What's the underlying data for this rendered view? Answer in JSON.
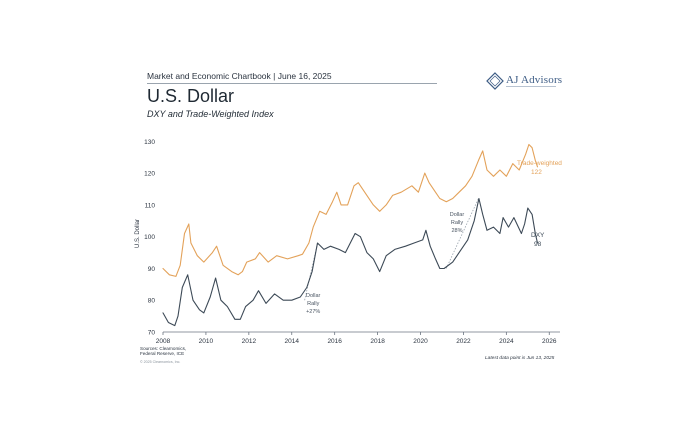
{
  "header": {
    "chartbook": "Market and Economic Chartbook | June 16, 2025",
    "logo_text": "AJ Advisors"
  },
  "title": "U.S. Dollar",
  "subtitle": "DXY and Trade-Weighted Index",
  "footer": {
    "sources_line1": "Sources: Clearnomics,",
    "sources_line2": "Federal Reserve, ICE",
    "copyright": "© 2025 Clearnomics, Inc.",
    "latest": "Latest data point is Jun 13, 2025"
  },
  "colors": {
    "trade_weighted": "#e3a25a",
    "dxy": "#3d4a57",
    "annotation": "#9aa4ae",
    "axis": "#6b7480",
    "brand": "#3c5b84"
  },
  "chart_data": {
    "type": "line",
    "xlim": [
      2008,
      2026.5
    ],
    "ylim": [
      70,
      132
    ],
    "ylabel": "U.S. Dollar",
    "x_ticks": [
      "2008",
      "2010",
      "2012",
      "2014",
      "2016",
      "2018",
      "2020",
      "2022",
      "2024",
      "2026"
    ],
    "y_ticks": [
      "70",
      "80",
      "90",
      "100",
      "110",
      "120",
      "130"
    ],
    "series": [
      {
        "name": "Trade-weighted",
        "end_label": "Trade-weighted",
        "end_value": "122",
        "points": [
          [
            2008.0,
            90.0
          ],
          [
            2008.3,
            88.0
          ],
          [
            2008.6,
            87.5
          ],
          [
            2008.8,
            91.0
          ],
          [
            2009.0,
            101.0
          ],
          [
            2009.2,
            104.0
          ],
          [
            2009.3,
            98.0
          ],
          [
            2009.6,
            94.0
          ],
          [
            2009.9,
            92.0
          ],
          [
            2010.3,
            95.0
          ],
          [
            2010.5,
            97.0
          ],
          [
            2010.8,
            91.0
          ],
          [
            2011.2,
            89.0
          ],
          [
            2011.5,
            88.0
          ],
          [
            2011.7,
            89.0
          ],
          [
            2011.9,
            92.0
          ],
          [
            2012.3,
            93.0
          ],
          [
            2012.5,
            95.0
          ],
          [
            2012.9,
            92.0
          ],
          [
            2013.3,
            94.0
          ],
          [
            2013.8,
            93.0
          ],
          [
            2014.3,
            94.0
          ],
          [
            2014.5,
            94.5
          ],
          [
            2014.8,
            98.0
          ],
          [
            2015.0,
            103.0
          ],
          [
            2015.3,
            108.0
          ],
          [
            2015.6,
            107.0
          ],
          [
            2015.9,
            111.0
          ],
          [
            2016.1,
            114.0
          ],
          [
            2016.3,
            110.0
          ],
          [
            2016.6,
            110.0
          ],
          [
            2016.9,
            116.0
          ],
          [
            2017.1,
            117.0
          ],
          [
            2017.4,
            114.0
          ],
          [
            2017.8,
            110.0
          ],
          [
            2018.1,
            108.0
          ],
          [
            2018.4,
            110.0
          ],
          [
            2018.7,
            113.0
          ],
          [
            2019.1,
            114.0
          ],
          [
            2019.6,
            116.0
          ],
          [
            2019.9,
            114.0
          ],
          [
            2020.2,
            120.0
          ],
          [
            2020.4,
            117.0
          ],
          [
            2020.7,
            114.0
          ],
          [
            2020.9,
            112.0
          ],
          [
            2021.2,
            111.0
          ],
          [
            2021.5,
            112.0
          ],
          [
            2021.8,
            114.0
          ],
          [
            2022.1,
            116.0
          ],
          [
            2022.4,
            119.0
          ],
          [
            2022.7,
            124.0
          ],
          [
            2022.9,
            127.0
          ],
          [
            2023.1,
            121.0
          ],
          [
            2023.4,
            119.0
          ],
          [
            2023.7,
            121.0
          ],
          [
            2024.0,
            119.0
          ],
          [
            2024.3,
            123.0
          ],
          [
            2024.6,
            121.0
          ],
          [
            2024.9,
            126.0
          ],
          [
            2025.05,
            129.0
          ],
          [
            2025.2,
            128.0
          ],
          [
            2025.35,
            124.0
          ],
          [
            2025.45,
            122.0
          ]
        ]
      },
      {
        "name": "DXY",
        "end_label": "DXY",
        "end_value": "98",
        "points": [
          [
            2008.0,
            76.0
          ],
          [
            2008.25,
            73.0
          ],
          [
            2008.55,
            72.0
          ],
          [
            2008.7,
            75.0
          ],
          [
            2008.9,
            84.0
          ],
          [
            2009.15,
            88.0
          ],
          [
            2009.4,
            80.0
          ],
          [
            2009.7,
            77.0
          ],
          [
            2009.9,
            76.0
          ],
          [
            2010.2,
            81.0
          ],
          [
            2010.45,
            87.0
          ],
          [
            2010.7,
            80.0
          ],
          [
            2011.0,
            78.0
          ],
          [
            2011.35,
            74.0
          ],
          [
            2011.6,
            74.0
          ],
          [
            2011.85,
            78.0
          ],
          [
            2012.2,
            80.0
          ],
          [
            2012.45,
            83.0
          ],
          [
            2012.8,
            79.0
          ],
          [
            2013.2,
            82.0
          ],
          [
            2013.6,
            80.0
          ],
          [
            2014.0,
            80.0
          ],
          [
            2014.4,
            81.0
          ],
          [
            2014.7,
            84.0
          ],
          [
            2014.95,
            89.0
          ],
          [
            2015.2,
            98.0
          ],
          [
            2015.5,
            96.0
          ],
          [
            2015.8,
            97.0
          ],
          [
            2016.2,
            96.0
          ],
          [
            2016.5,
            95.0
          ],
          [
            2016.95,
            101.0
          ],
          [
            2017.2,
            100.0
          ],
          [
            2017.5,
            95.0
          ],
          [
            2017.8,
            93.0
          ],
          [
            2018.1,
            89.0
          ],
          [
            2018.4,
            94.0
          ],
          [
            2018.8,
            96.0
          ],
          [
            2019.3,
            97.0
          ],
          [
            2019.7,
            98.0
          ],
          [
            2020.1,
            99.0
          ],
          [
            2020.25,
            102.0
          ],
          [
            2020.45,
            97.0
          ],
          [
            2020.7,
            93.0
          ],
          [
            2020.9,
            90.0
          ],
          [
            2021.1,
            90.0
          ],
          [
            2021.5,
            92.0
          ],
          [
            2021.8,
            95.0
          ],
          [
            2022.2,
            99.0
          ],
          [
            2022.5,
            105.0
          ],
          [
            2022.72,
            112.0
          ],
          [
            2022.9,
            107.0
          ],
          [
            2023.1,
            102.0
          ],
          [
            2023.4,
            103.0
          ],
          [
            2023.7,
            101.0
          ],
          [
            2023.85,
            106.0
          ],
          [
            2024.1,
            103.0
          ],
          [
            2024.35,
            106.0
          ],
          [
            2024.7,
            101.0
          ],
          [
            2024.85,
            104.0
          ],
          [
            2025.0,
            109.0
          ],
          [
            2025.2,
            107.0
          ],
          [
            2025.35,
            101.0
          ],
          [
            2025.45,
            98.0
          ]
        ]
      }
    ],
    "annotations": [
      {
        "lines": [
          "Dollar",
          "Rally",
          "+27%"
        ],
        "x": 2015.0,
        "y": 81.0,
        "from": [
          2014.6,
          80.0
        ],
        "to": [
          2015.2,
          98.0
        ]
      },
      {
        "lines": [
          "Dollar",
          "Rally",
          "28%"
        ],
        "x": 2021.7,
        "y": 106.5,
        "from": [
          2021.2,
          90.0
        ],
        "to": [
          2022.7,
          112.0
        ]
      }
    ]
  }
}
